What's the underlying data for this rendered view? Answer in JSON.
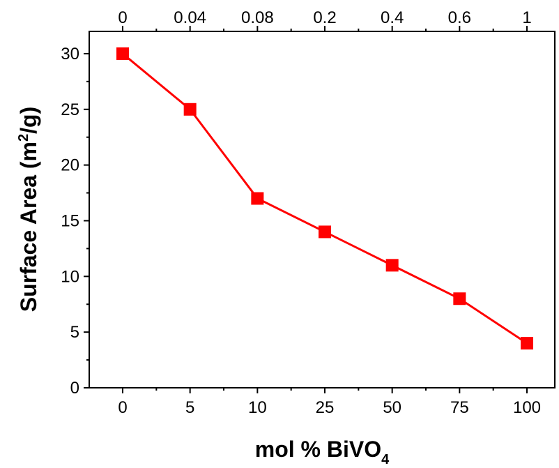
{
  "chart_data": {
    "type": "line",
    "x_categories": [
      "0",
      "5",
      "10",
      "25",
      "50",
      "75",
      "100"
    ],
    "top_categories": [
      "0",
      "0.04",
      "0.08",
      "0.2",
      "0.4",
      "0.6",
      "1"
    ],
    "series": [
      {
        "values": [
          30,
          25,
          17,
          14,
          11,
          8,
          4
        ],
        "color": "#ff0000",
        "marker": "square"
      }
    ],
    "ylim": [
      0,
      32
    ],
    "yticks": [
      0,
      5,
      10,
      15,
      20,
      25,
      30
    ],
    "xlabel": {
      "main": "mol % BiVO",
      "sub": "4"
    },
    "ylabel": {
      "main": "Surface Area (m",
      "sup": "2",
      "tail": "/g)"
    },
    "grid": false,
    "legend": "none"
  }
}
